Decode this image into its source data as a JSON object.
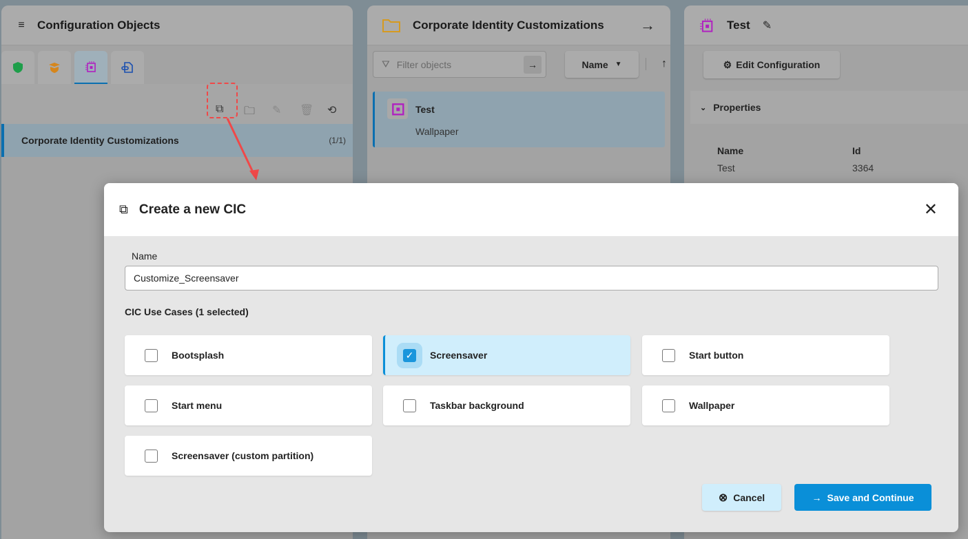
{
  "left_panel": {
    "title": "Configuration Objects",
    "tabs": [
      {
        "icon": "shield-icon",
        "color": "#1e9e4a"
      },
      {
        "icon": "graduation-shield-icon",
        "color": "#d6861c"
      },
      {
        "icon": "cic-chip-icon",
        "color": "#b020c0"
      },
      {
        "icon": "document-link-icon",
        "color": "#1a4fb0"
      }
    ],
    "toolbar": [
      "create-cic-icon",
      "new-folder-icon",
      "edit-icon",
      "delete-icon",
      "refresh-icon"
    ],
    "items": [
      {
        "label": "Corporate Identity Customizations",
        "count": "(1/1)"
      }
    ]
  },
  "middle_panel": {
    "title": "Corporate Identity Customizations",
    "filter_placeholder": "Filter objects",
    "sort_label": "Name",
    "items": [
      {
        "title": "Test",
        "subtitle": "Wallpaper"
      }
    ]
  },
  "right_panel": {
    "title": "Test",
    "edit_button": "Edit Configuration",
    "section": "Properties",
    "columns": [
      "Name",
      "Id"
    ],
    "values": [
      "Test",
      "3364"
    ]
  },
  "dialog": {
    "title": "Create a new CIC",
    "name_label": "Name",
    "name_value": "Customize_Screensaver",
    "section_title": "CIC Use Cases (1 selected)",
    "use_cases": [
      {
        "label": "Bootsplash",
        "checked": false
      },
      {
        "label": "Screensaver",
        "checked": true
      },
      {
        "label": "Start button",
        "checked": false
      },
      {
        "label": "Start menu",
        "checked": false
      },
      {
        "label": "Taskbar background",
        "checked": false
      },
      {
        "label": "Wallpaper",
        "checked": false
      },
      {
        "label": "Screensaver (custom partition)",
        "checked": false
      }
    ],
    "cancel_label": "Cancel",
    "save_label": "Save and Continue",
    "accent": "#0a8fd8"
  }
}
